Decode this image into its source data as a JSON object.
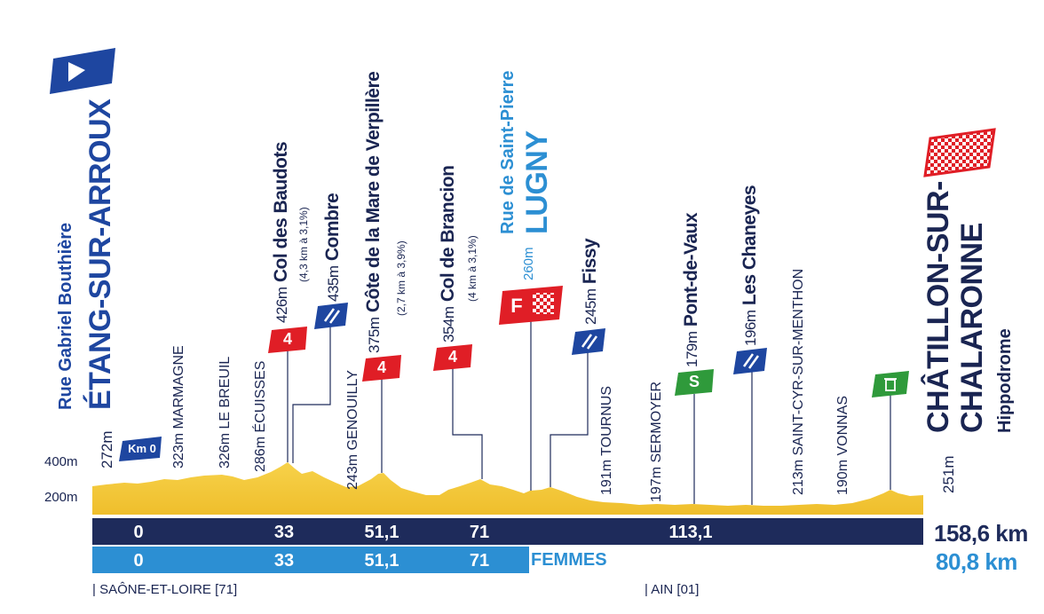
{
  "start": {
    "street": "Rue Gabriel Bouthière",
    "town": "ÉTANG-SUR-ARROUX",
    "altitude": "272m",
    "km0": "Km 0"
  },
  "finish": {
    "town_line1": "CHÂTILLON-SUR-",
    "town_line2": "CHALARONNE",
    "place": "Hippodrome",
    "altitude": "251m"
  },
  "waypoints": [
    {
      "altitude": "323m",
      "name": "MARMAGNE"
    },
    {
      "altitude": "326m",
      "name": "LE BREUIL"
    },
    {
      "altitude": "286m",
      "name": "ÉCUISSES"
    },
    {
      "altitude": "243m",
      "name": "GENOUILLY"
    },
    {
      "altitude": "191m",
      "name": "TOURNUS"
    },
    {
      "altitude": "197m",
      "name": "SERMOYER"
    },
    {
      "altitude": "213m",
      "name": "SAINT-CYR-SUR-MENTHON"
    },
    {
      "altitude": "190m",
      "name": "VONNAS"
    }
  ],
  "climbs": [
    {
      "altitude": "426m",
      "name": "Col des Baudots",
      "detail": "(4,3 km à 3,1%)",
      "category": "4"
    },
    {
      "altitude": "375m",
      "name": "Côte de la Mare de Verpillère",
      "detail": "(2,7 km à 3,9%)",
      "category": "4"
    },
    {
      "altitude": "354m",
      "name": "Col de Brancion",
      "detail": "(4 km à 3,1%)",
      "category": "4"
    }
  ],
  "feed_zones": [
    {
      "altitude": "435m",
      "name": "Combre"
    },
    {
      "altitude": "245m",
      "name": "Fissy"
    },
    {
      "altitude": "196m",
      "name": "Les Chaneyes"
    }
  ],
  "women_finish": {
    "street": "Rue de Saint-Pierre",
    "altitude": "260m",
    "town": "LUGNY",
    "badge": "F"
  },
  "sprint": {
    "altitude": "179m",
    "name": "Pont-de-Vaux",
    "badge": "S"
  },
  "y_axis": {
    "label_400": "400m",
    "label_200": "200m"
  },
  "men_km": [
    "0",
    "33",
    "51,1",
    "71",
    "113,1"
  ],
  "men_total": "158,6 km",
  "women_km": [
    "0",
    "33",
    "51,1",
    "71"
  ],
  "women_label": "FEMMES",
  "women_total": "80,8 km",
  "departments": [
    "| SAÔNE-ET-LOIRE [71]",
    "| AIN [01]"
  ],
  "colors": {
    "navy": "#1e2b5b",
    "blue": "#2c8fd3",
    "dark_blue_flag": "#1e46a0",
    "red": "#e01e26",
    "green": "#2f9a3b",
    "terrain": "#f3c83a"
  }
}
